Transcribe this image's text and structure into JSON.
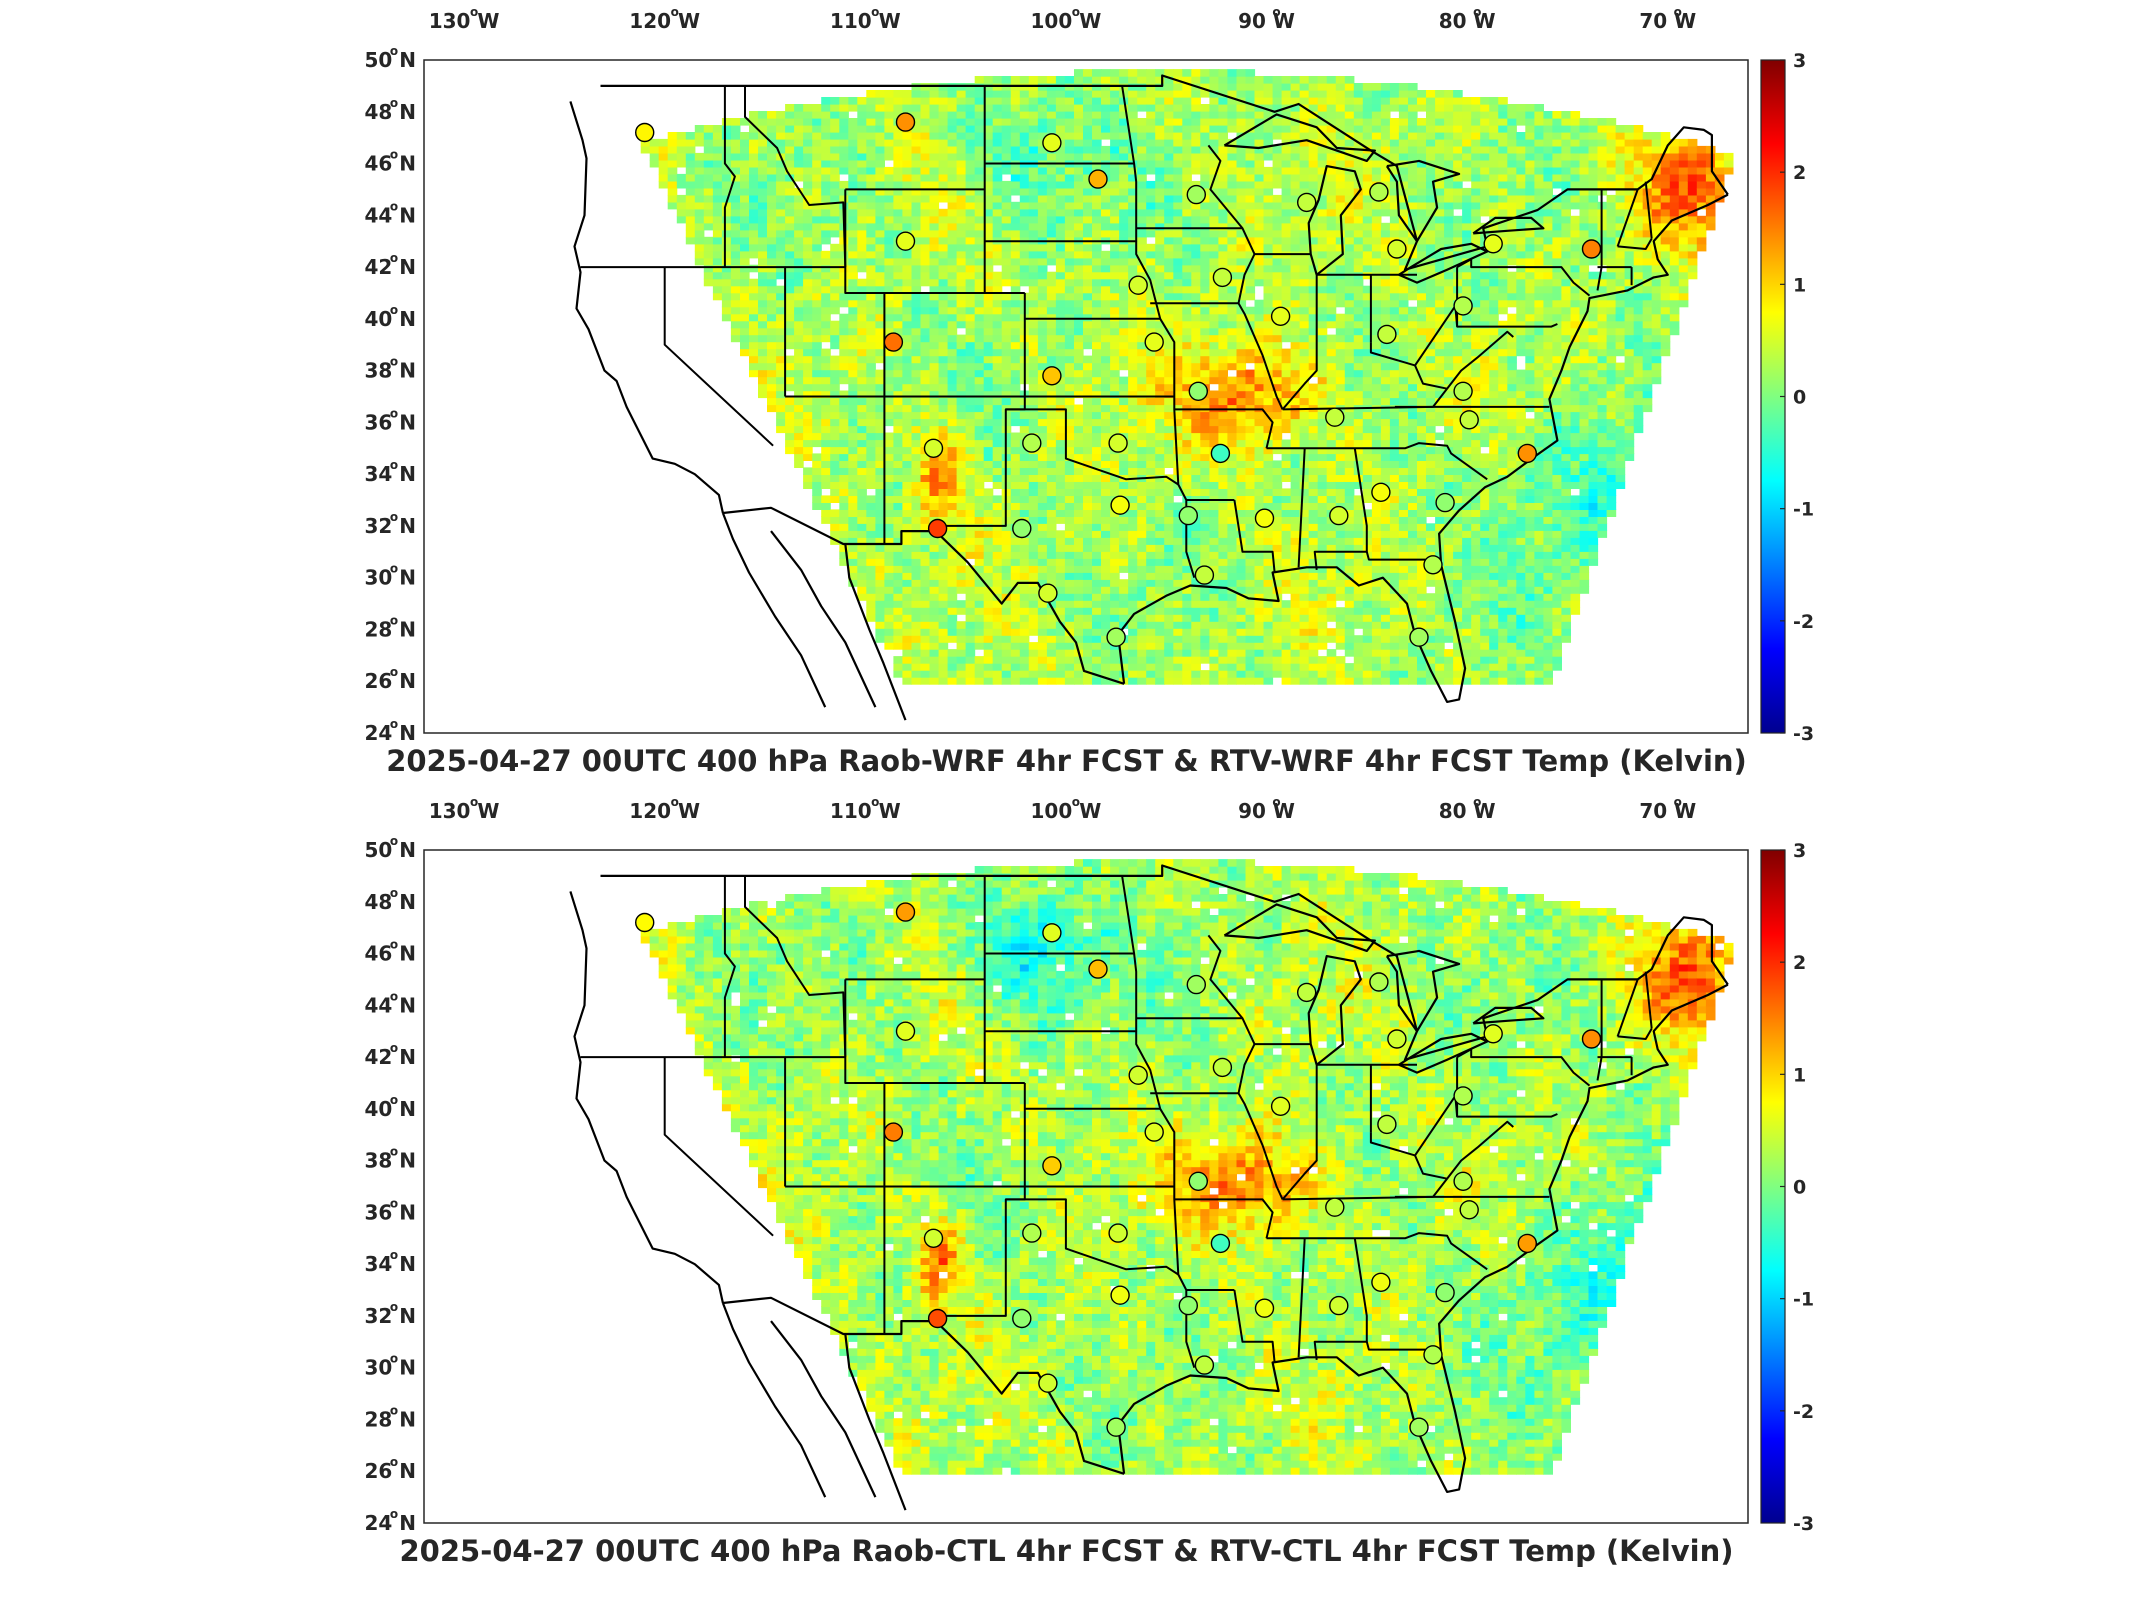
{
  "panels": [
    {
      "title": "2025-04-27 00UTC 400 hPa Raob-WRF 4hr FCST & RTV-WRF 4hr FCST Temp (Kelvin)"
    },
    {
      "title": "2025-04-27 00UTC 400 hPa Raob-CTL 4hr FCST & RTV-CTL 4hr FCST Temp (Kelvin)"
    }
  ],
  "lon_labels": [
    "130",
    "120",
    "110",
    "100",
    "90",
    "80",
    "70"
  ],
  "lon_dir": "W",
  "lat_labels": [
    "50",
    "48",
    "46",
    "44",
    "42",
    "40",
    "38",
    "36",
    "34",
    "32",
    "30",
    "28",
    "26",
    "24"
  ],
  "lat_dir": "N",
  "colorbar": {
    "ticks": [
      "3",
      "2",
      "1",
      "0",
      "-1",
      "-2",
      "-3"
    ],
    "range": [
      -3,
      3
    ],
    "colormap": "jet",
    "colors": [
      "#00008f",
      "#0000ff",
      "#00ffff",
      "#80ff80",
      "#ffff00",
      "#ff8000",
      "#ff0000",
      "#800000"
    ]
  },
  "map": {
    "region": "Continental United States",
    "lon_range": [
      -132,
      -66
    ],
    "lat_range": [
      24,
      50
    ],
    "field": "400 hPa temperature difference, RTV minus model forecast (K)",
    "field_background": "#9be04c",
    "missing_color": "#ffffff",
    "coastline_color": "#000000"
  },
  "raob_sites": [
    {
      "lon": -121.0,
      "lat": 47.2,
      "value": 0.8
    },
    {
      "lon": -108.0,
      "lat": 47.6,
      "value": 1.4
    },
    {
      "lon": -100.7,
      "lat": 46.8,
      "value": 0.6
    },
    {
      "lon": -98.4,
      "lat": 45.4,
      "value": 1.2
    },
    {
      "lon": -93.5,
      "lat": 44.8,
      "value": 0.2
    },
    {
      "lon": -88.0,
      "lat": 44.5,
      "value": 0.4
    },
    {
      "lon": -84.4,
      "lat": 44.9,
      "value": 0.3
    },
    {
      "lon": -108.0,
      "lat": 43.0,
      "value": 0.6
    },
    {
      "lon": -83.5,
      "lat": 42.7,
      "value": 0.5
    },
    {
      "lon": -78.7,
      "lat": 42.9,
      "value": 0.6
    },
    {
      "lon": -73.8,
      "lat": 42.7,
      "value": 1.5
    },
    {
      "lon": -92.2,
      "lat": 41.6,
      "value": 0.4
    },
    {
      "lon": -96.4,
      "lat": 41.3,
      "value": 0.5
    },
    {
      "lon": -108.6,
      "lat": 39.1,
      "value": 1.6
    },
    {
      "lon": -89.3,
      "lat": 40.1,
      "value": 0.6
    },
    {
      "lon": -84.0,
      "lat": 39.4,
      "value": 0.4
    },
    {
      "lon": -80.2,
      "lat": 40.5,
      "value": 0.3
    },
    {
      "lon": -95.6,
      "lat": 39.1,
      "value": 0.6
    },
    {
      "lon": -100.7,
      "lat": 37.8,
      "value": 1.1
    },
    {
      "lon": -93.4,
      "lat": 37.2,
      "value": 0.1
    },
    {
      "lon": -86.6,
      "lat": 36.2,
      "value": 0.4
    },
    {
      "lon": -80.2,
      "lat": 37.2,
      "value": 0.3
    },
    {
      "lon": -79.9,
      "lat": 36.1,
      "value": 0.4
    },
    {
      "lon": -106.6,
      "lat": 35.0,
      "value": 0.5
    },
    {
      "lon": -101.7,
      "lat": 35.2,
      "value": 0.3
    },
    {
      "lon": -97.4,
      "lat": 35.2,
      "value": 0.5
    },
    {
      "lon": -92.3,
      "lat": 34.8,
      "value": -0.4
    },
    {
      "lon": -77.0,
      "lat": 34.8,
      "value": 1.4
    },
    {
      "lon": -106.4,
      "lat": 31.9,
      "value": 1.9
    },
    {
      "lon": -102.2,
      "lat": 31.9,
      "value": 0.1
    },
    {
      "lon": -97.3,
      "lat": 32.8,
      "value": 0.7
    },
    {
      "lon": -93.9,
      "lat": 32.4,
      "value": 0.1
    },
    {
      "lon": -90.1,
      "lat": 32.3,
      "value": 0.7
    },
    {
      "lon": -86.4,
      "lat": 32.4,
      "value": 0.5
    },
    {
      "lon": -84.3,
      "lat": 33.3,
      "value": 0.7
    },
    {
      "lon": -81.1,
      "lat": 32.9,
      "value": 0.1
    },
    {
      "lon": -100.9,
      "lat": 29.4,
      "value": 0.5
    },
    {
      "lon": -97.5,
      "lat": 27.7,
      "value": 0.2
    },
    {
      "lon": -93.1,
      "lat": 30.1,
      "value": 0.4
    },
    {
      "lon": -81.7,
      "lat": 30.5,
      "value": 0.3
    },
    {
      "lon": -82.4,
      "lat": 27.7,
      "value": 0.2
    }
  ]
}
